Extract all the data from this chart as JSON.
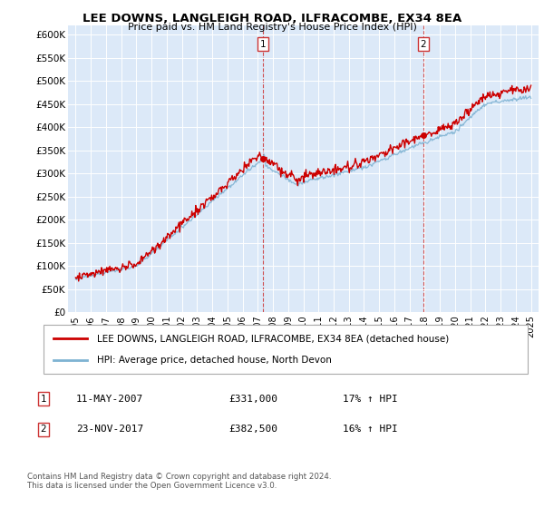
{
  "title": "LEE DOWNS, LANGLEIGH ROAD, ILFRACOMBE, EX34 8EA",
  "subtitle": "Price paid vs. HM Land Registry's House Price Index (HPI)",
  "ylabel_ticks": [
    "£0",
    "£50K",
    "£100K",
    "£150K",
    "£200K",
    "£250K",
    "£300K",
    "£350K",
    "£400K",
    "£450K",
    "£500K",
    "£550K",
    "£600K"
  ],
  "ytick_vals": [
    0,
    50000,
    100000,
    150000,
    200000,
    250000,
    300000,
    350000,
    400000,
    450000,
    500000,
    550000,
    600000
  ],
  "ylim": [
    0,
    620000
  ],
  "xlim_start": 1994.5,
  "xlim_end": 2025.5,
  "plot_bg": "#dce9f8",
  "red_color": "#cc0000",
  "blue_color": "#7fb3d3",
  "marker1_x": 2007.36,
  "marker1_y": 331000,
  "marker1_label": "1",
  "marker1_date": "11-MAY-2007",
  "marker1_price": "£331,000",
  "marker1_hpi": "17% ↑ HPI",
  "marker2_x": 2017.9,
  "marker2_y": 382500,
  "marker2_label": "2",
  "marker2_date": "23-NOV-2017",
  "marker2_price": "£382,500",
  "marker2_hpi": "16% ↑ HPI",
  "legend_red": "LEE DOWNS, LANGLEIGH ROAD, ILFRACOMBE, EX34 8EA (detached house)",
  "legend_blue": "HPI: Average price, detached house, North Devon",
  "footnote": "Contains HM Land Registry data © Crown copyright and database right 2024.\nThis data is licensed under the Open Government Licence v3.0.",
  "xtick_years": [
    1995,
    1996,
    1997,
    1998,
    1999,
    2000,
    2001,
    2002,
    2003,
    2004,
    2005,
    2006,
    2007,
    2008,
    2009,
    2010,
    2011,
    2012,
    2013,
    2014,
    2015,
    2016,
    2017,
    2018,
    2019,
    2020,
    2021,
    2022,
    2023,
    2024,
    2025
  ]
}
